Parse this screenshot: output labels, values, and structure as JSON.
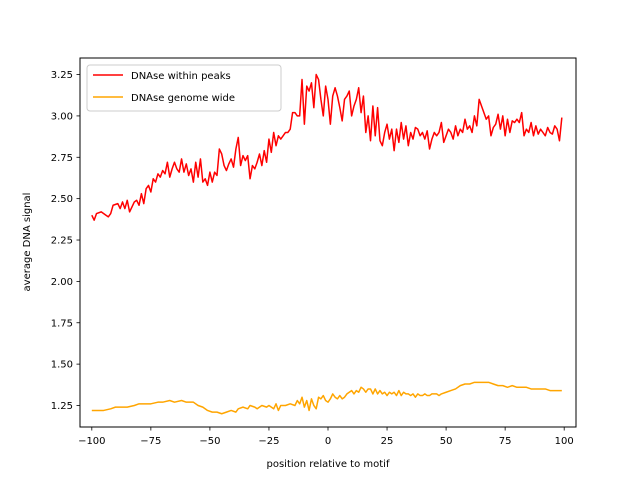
{
  "chart_data": {
    "type": "line",
    "xlabel": "position relative to motif",
    "ylabel": "average DNA signal",
    "xlim": [
      -105,
      105
    ],
    "ylim": [
      1.12,
      3.35
    ],
    "xticks": [
      -100,
      -75,
      -50,
      -25,
      0,
      25,
      50,
      75,
      100
    ],
    "xtick_labels": [
      "−100",
      "−75",
      "−50",
      "−25",
      "0",
      "25",
      "50",
      "75",
      "100"
    ],
    "yticks": [
      1.25,
      1.5,
      1.75,
      2.0,
      2.25,
      2.5,
      2.75,
      3.0,
      3.25
    ],
    "ytick_labels": [
      "1.25",
      "1.50",
      "1.75",
      "2.00",
      "2.25",
      "2.50",
      "2.75",
      "3.00",
      "3.25"
    ],
    "legend_position": "top-left",
    "grid": false,
    "series": [
      {
        "name": "DNAse within peaks",
        "color": "#ff0000",
        "points": [
          [
            -100,
            2.4
          ],
          [
            -99,
            2.37
          ],
          [
            -98,
            2.41
          ],
          [
            -96,
            2.42
          ],
          [
            -94,
            2.4
          ],
          [
            -93,
            2.39
          ],
          [
            -92,
            2.41
          ],
          [
            -91,
            2.46
          ],
          [
            -89,
            2.47
          ],
          [
            -88,
            2.44
          ],
          [
            -87,
            2.48
          ],
          [
            -86,
            2.44
          ],
          [
            -85,
            2.49
          ],
          [
            -84,
            2.42
          ],
          [
            -82,
            2.48
          ],
          [
            -81,
            2.49
          ],
          [
            -80,
            2.46
          ],
          [
            -79,
            2.53
          ],
          [
            -78,
            2.47
          ],
          [
            -77,
            2.56
          ],
          [
            -76,
            2.58
          ],
          [
            -75,
            2.54
          ],
          [
            -74,
            2.62
          ],
          [
            -73,
            2.6
          ],
          [
            -72,
            2.65
          ],
          [
            -71,
            2.63
          ],
          [
            -70,
            2.67
          ],
          [
            -69,
            2.65
          ],
          [
            -68,
            2.72
          ],
          [
            -67,
            2.63
          ],
          [
            -66,
            2.68
          ],
          [
            -65,
            2.72
          ],
          [
            -64,
            2.68
          ],
          [
            -63,
            2.66
          ],
          [
            -62,
            2.74
          ],
          [
            -61,
            2.66
          ],
          [
            -60,
            2.71
          ],
          [
            -59,
            2.64
          ],
          [
            -58,
            2.68
          ],
          [
            -57,
            2.6
          ],
          [
            -56,
            2.72
          ],
          [
            -55,
            2.63
          ],
          [
            -54,
            2.74
          ],
          [
            -53,
            2.6
          ],
          [
            -52,
            2.62
          ],
          [
            -51,
            2.58
          ],
          [
            -50,
            2.66
          ],
          [
            -49,
            2.6
          ],
          [
            -48,
            2.66
          ],
          [
            -47,
            2.64
          ],
          [
            -46,
            2.8
          ],
          [
            -45,
            2.77
          ],
          [
            -44,
            2.7
          ],
          [
            -43,
            2.67
          ],
          [
            -42,
            2.71
          ],
          [
            -41,
            2.74
          ],
          [
            -40,
            2.69
          ],
          [
            -39,
            2.8
          ],
          [
            -38,
            2.87
          ],
          [
            -37,
            2.7
          ],
          [
            -36,
            2.76
          ],
          [
            -35,
            2.73
          ],
          [
            -34,
            2.76
          ],
          [
            -33,
            2.62
          ],
          [
            -32,
            2.7
          ],
          [
            -31,
            2.68
          ],
          [
            -30,
            2.72
          ],
          [
            -29,
            2.77
          ],
          [
            -28,
            2.7
          ],
          [
            -27,
            2.79
          ],
          [
            -26,
            2.72
          ],
          [
            -25,
            2.86
          ],
          [
            -24,
            2.78
          ],
          [
            -23,
            2.9
          ],
          [
            -22,
            2.82
          ],
          [
            -21,
            2.88
          ],
          [
            -20,
            2.86
          ],
          [
            -19,
            2.88
          ],
          [
            -18,
            2.9
          ],
          [
            -17,
            2.9
          ],
          [
            -16,
            2.92
          ],
          [
            -15,
            3.02
          ],
          [
            -14,
            3.02
          ],
          [
            -13,
            3.0
          ],
          [
            -12,
            3.0
          ],
          [
            -11,
            3.22
          ],
          [
            -10,
            2.95
          ],
          [
            -9,
            3.18
          ],
          [
            -8,
            3.15
          ],
          [
            -7,
            3.2
          ],
          [
            -6,
            3.05
          ],
          [
            -5,
            3.25
          ],
          [
            -4,
            3.22
          ],
          [
            -3,
            3.1
          ],
          [
            -2,
            3.0
          ],
          [
            -1,
            3.18
          ],
          [
            0,
            3.1
          ],
          [
            1,
            2.95
          ],
          [
            2,
            3.12
          ],
          [
            3,
            3.17
          ],
          [
            4,
            3.12
          ],
          [
            5,
            3.05
          ],
          [
            6,
            2.97
          ],
          [
            7,
            3.1
          ],
          [
            8,
            3.12
          ],
          [
            9,
            3.15
          ],
          [
            10,
            3.0
          ],
          [
            11,
            3.06
          ],
          [
            12,
            3.1
          ],
          [
            13,
            3.17
          ],
          [
            14,
            3.02
          ],
          [
            15,
            3.12
          ],
          [
            16,
            2.9
          ],
          [
            17,
            3.0
          ],
          [
            18,
            2.85
          ],
          [
            19,
            3.06
          ],
          [
            20,
            2.88
          ],
          [
            21,
            3.05
          ],
          [
            22,
            2.85
          ],
          [
            23,
            2.82
          ],
          [
            24,
            2.9
          ],
          [
            25,
            2.95
          ],
          [
            26,
            2.86
          ],
          [
            27,
            2.92
          ],
          [
            28,
            2.79
          ],
          [
            29,
            2.92
          ],
          [
            30,
            2.84
          ],
          [
            31,
            2.96
          ],
          [
            32,
            2.86
          ],
          [
            33,
            2.94
          ],
          [
            34,
            2.82
          ],
          [
            35,
            2.9
          ],
          [
            36,
            2.86
          ],
          [
            37,
            2.93
          ],
          [
            38,
            2.92
          ],
          [
            39,
            2.88
          ],
          [
            40,
            2.9
          ],
          [
            41,
            2.86
          ],
          [
            42,
            2.91
          ],
          [
            43,
            2.8
          ],
          [
            44,
            2.86
          ],
          [
            45,
            2.9
          ],
          [
            46,
            2.88
          ],
          [
            47,
            2.9
          ],
          [
            48,
            2.96
          ],
          [
            49,
            2.84
          ],
          [
            50,
            2.88
          ],
          [
            51,
            2.92
          ],
          [
            52,
            2.9
          ],
          [
            53,
            2.86
          ],
          [
            54,
            2.94
          ],
          [
            55,
            2.88
          ],
          [
            56,
            2.92
          ],
          [
            57,
            2.9
          ],
          [
            58,
            2.98
          ],
          [
            59,
            2.92
          ],
          [
            60,
            2.94
          ],
          [
            61,
            2.9
          ],
          [
            62,
            3.0
          ],
          [
            63,
            2.94
          ],
          [
            64,
            3.1
          ],
          [
            65,
            3.06
          ],
          [
            66,
            3.02
          ],
          [
            67,
            2.98
          ],
          [
            68,
            3.0
          ],
          [
            69,
            2.88
          ],
          [
            70,
            2.93
          ],
          [
            71,
            2.95
          ],
          [
            72,
            3.01
          ],
          [
            73,
            2.92
          ],
          [
            74,
            3.0
          ],
          [
            75,
            2.88
          ],
          [
            76,
            2.98
          ],
          [
            77,
            2.9
          ],
          [
            78,
            2.97
          ],
          [
            79,
            2.96
          ],
          [
            80,
            2.98
          ],
          [
            81,
            2.96
          ],
          [
            82,
            3.02
          ],
          [
            83,
            2.88
          ],
          [
            84,
            2.92
          ],
          [
            85,
            2.9
          ],
          [
            86,
            2.96
          ],
          [
            87,
            2.88
          ],
          [
            88,
            2.94
          ],
          [
            89,
            2.89
          ],
          [
            90,
            2.92
          ],
          [
            91,
            2.9
          ],
          [
            92,
            2.88
          ],
          [
            93,
            2.93
          ],
          [
            94,
            2.9
          ],
          [
            95,
            2.89
          ],
          [
            96,
            2.94
          ],
          [
            97,
            2.92
          ],
          [
            98,
            2.85
          ],
          [
            99,
            2.99
          ]
        ]
      },
      {
        "name": "DNAse genome wide",
        "color": "#ffa500",
        "points": [
          [
            -100,
            1.22
          ],
          [
            -95,
            1.22
          ],
          [
            -92,
            1.23
          ],
          [
            -90,
            1.24
          ],
          [
            -85,
            1.24
          ],
          [
            -82,
            1.25
          ],
          [
            -80,
            1.26
          ],
          [
            -75,
            1.26
          ],
          [
            -72,
            1.27
          ],
          [
            -70,
            1.27
          ],
          [
            -67,
            1.28
          ],
          [
            -65,
            1.27
          ],
          [
            -62,
            1.28
          ],
          [
            -60,
            1.27
          ],
          [
            -57,
            1.27
          ],
          [
            -55,
            1.25
          ],
          [
            -53,
            1.24
          ],
          [
            -51,
            1.22
          ],
          [
            -49,
            1.21
          ],
          [
            -47,
            1.21
          ],
          [
            -45,
            1.2
          ],
          [
            -43,
            1.21
          ],
          [
            -41,
            1.22
          ],
          [
            -39,
            1.21
          ],
          [
            -38,
            1.23
          ],
          [
            -36,
            1.24
          ],
          [
            -34,
            1.23
          ],
          [
            -33,
            1.25
          ],
          [
            -31,
            1.24
          ],
          [
            -30,
            1.23
          ],
          [
            -28,
            1.25
          ],
          [
            -26,
            1.24
          ],
          [
            -25,
            1.25
          ],
          [
            -23,
            1.23
          ],
          [
            -22,
            1.26
          ],
          [
            -21,
            1.22
          ],
          [
            -20,
            1.25
          ],
          [
            -18,
            1.25
          ],
          [
            -16,
            1.26
          ],
          [
            -14,
            1.25
          ],
          [
            -13,
            1.28
          ],
          [
            -12,
            1.26
          ],
          [
            -11,
            1.3
          ],
          [
            -10,
            1.24
          ],
          [
            -9,
            1.28
          ],
          [
            -8,
            1.22
          ],
          [
            -7,
            1.29
          ],
          [
            -6,
            1.25
          ],
          [
            -5,
            1.23
          ],
          [
            -4,
            1.3
          ],
          [
            -3,
            1.29
          ],
          [
            -2,
            1.31
          ],
          [
            -1,
            1.28
          ],
          [
            0,
            1.27
          ],
          [
            1,
            1.29
          ],
          [
            2,
            1.32
          ],
          [
            3,
            1.3
          ],
          [
            4,
            1.29
          ],
          [
            5,
            1.31
          ],
          [
            6,
            1.29
          ],
          [
            7,
            1.3
          ],
          [
            8,
            1.32
          ],
          [
            9,
            1.33
          ],
          [
            10,
            1.34
          ],
          [
            11,
            1.32
          ],
          [
            12,
            1.34
          ],
          [
            13,
            1.33
          ],
          [
            14,
            1.36
          ],
          [
            15,
            1.35
          ],
          [
            16,
            1.33
          ],
          [
            17,
            1.35
          ],
          [
            18,
            1.35
          ],
          [
            19,
            1.32
          ],
          [
            20,
            1.35
          ],
          [
            21,
            1.32
          ],
          [
            22,
            1.34
          ],
          [
            23,
            1.32
          ],
          [
            24,
            1.33
          ],
          [
            25,
            1.31
          ],
          [
            26,
            1.33
          ],
          [
            27,
            1.32
          ],
          [
            28,
            1.33
          ],
          [
            29,
            1.31
          ],
          [
            30,
            1.34
          ],
          [
            31,
            1.31
          ],
          [
            32,
            1.33
          ],
          [
            33,
            1.32
          ],
          [
            34,
            1.32
          ],
          [
            35,
            1.31
          ],
          [
            36,
            1.32
          ],
          [
            37,
            1.3
          ],
          [
            38,
            1.32
          ],
          [
            39,
            1.31
          ],
          [
            40,
            1.31
          ],
          [
            41,
            1.32
          ],
          [
            42,
            1.31
          ],
          [
            43,
            1.31
          ],
          [
            44,
            1.32
          ],
          [
            45,
            1.32
          ],
          [
            46,
            1.32
          ],
          [
            47,
            1.31
          ],
          [
            48,
            1.32
          ],
          [
            50,
            1.33
          ],
          [
            52,
            1.34
          ],
          [
            54,
            1.35
          ],
          [
            56,
            1.37
          ],
          [
            58,
            1.38
          ],
          [
            60,
            1.38
          ],
          [
            62,
            1.39
          ],
          [
            64,
            1.39
          ],
          [
            66,
            1.39
          ],
          [
            68,
            1.39
          ],
          [
            70,
            1.38
          ],
          [
            72,
            1.37
          ],
          [
            74,
            1.37
          ],
          [
            76,
            1.36
          ],
          [
            78,
            1.37
          ],
          [
            80,
            1.36
          ],
          [
            82,
            1.36
          ],
          [
            84,
            1.36
          ],
          [
            86,
            1.35
          ],
          [
            88,
            1.35
          ],
          [
            90,
            1.35
          ],
          [
            92,
            1.35
          ],
          [
            94,
            1.34
          ],
          [
            96,
            1.34
          ],
          [
            98,
            1.34
          ],
          [
            99,
            1.34
          ]
        ]
      }
    ]
  }
}
